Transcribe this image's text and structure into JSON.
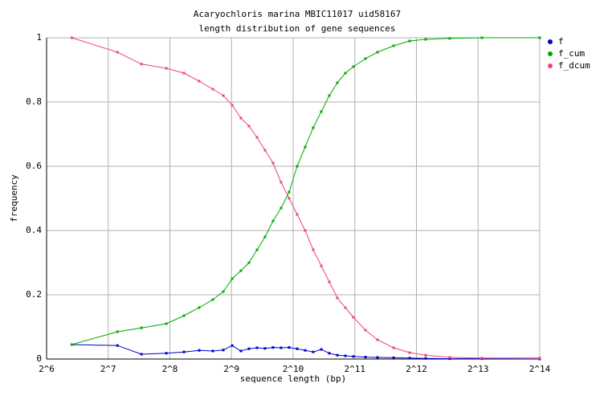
{
  "chart_data": {
    "type": "line",
    "title": "Acaryochloris marina MBIC11017 uid58167",
    "subtitle": "length distribution of gene sequences",
    "x_label": "sequence length (bp)",
    "y_label": "frequency",
    "log_x": 2,
    "grid": true,
    "legend": "top-right",
    "x": [
      85,
      142,
      186,
      246,
      300,
      356,
      415,
      467,
      516,
      569,
      623,
      682,
      746,
      817,
      894,
      979,
      1071,
      1172,
      1283,
      1405,
      1538,
      1683,
      1842,
      2016,
      2309,
      2643,
      3168,
      3795,
      4544,
      5959,
      8552,
      16384
    ],
    "series": [
      {
        "name": "f",
        "color": "#0000cc",
        "values": [
          0.045,
          0.042,
          0.015,
          0.018,
          0.022,
          0.027,
          0.025,
          0.028,
          0.042,
          0.025,
          0.032,
          0.035,
          0.033,
          0.036,
          0.035,
          0.036,
          0.032,
          0.027,
          0.022,
          0.03,
          0.018,
          0.012,
          0.01,
          0.008,
          0.006,
          0.005,
          0.004,
          0.003,
          0.002,
          0.001,
          0.001,
          0
        ]
      },
      {
        "name": "f_cum",
        "color": "#00aa00",
        "values": [
          0.045,
          0.085,
          0.097,
          0.11,
          0.135,
          0.16,
          0.185,
          0.21,
          0.25,
          0.275,
          0.3,
          0.34,
          0.38,
          0.43,
          0.47,
          0.52,
          0.6,
          0.66,
          0.72,
          0.77,
          0.82,
          0.86,
          0.89,
          0.91,
          0.935,
          0.955,
          0.975,
          0.99,
          0.995,
          0.998,
          1,
          1
        ]
      },
      {
        "name": "f_dcum",
        "color": "#ee4477",
        "values": [
          1,
          0.955,
          0.918,
          0.905,
          0.89,
          0.865,
          0.84,
          0.82,
          0.79,
          0.75,
          0.725,
          0.69,
          0.65,
          0.61,
          0.55,
          0.5,
          0.45,
          0.4,
          0.34,
          0.29,
          0.24,
          0.19,
          0.16,
          0.13,
          0.09,
          0.06,
          0.035,
          0.02,
          0.012,
          0.005,
          0.003,
          0.003
        ]
      }
    ],
    "xlim": [
      64,
      16384
    ],
    "ylim": [
      0,
      1
    ],
    "xticks": [
      {
        "value": 64,
        "label": "2^6"
      },
      {
        "value": 128,
        "label": "2^7"
      },
      {
        "value": 256,
        "label": "2^8"
      },
      {
        "value": 512,
        "label": "2^9"
      },
      {
        "value": 1024,
        "label": "2^10"
      },
      {
        "value": 2048,
        "label": "2^11"
      },
      {
        "value": 4096,
        "label": "2^12"
      },
      {
        "value": 8192,
        "label": "2^13"
      },
      {
        "value": 16384,
        "label": "2^14"
      }
    ],
    "yticks": [
      0,
      0.2,
      0.4,
      0.6,
      0.8,
      1
    ]
  }
}
